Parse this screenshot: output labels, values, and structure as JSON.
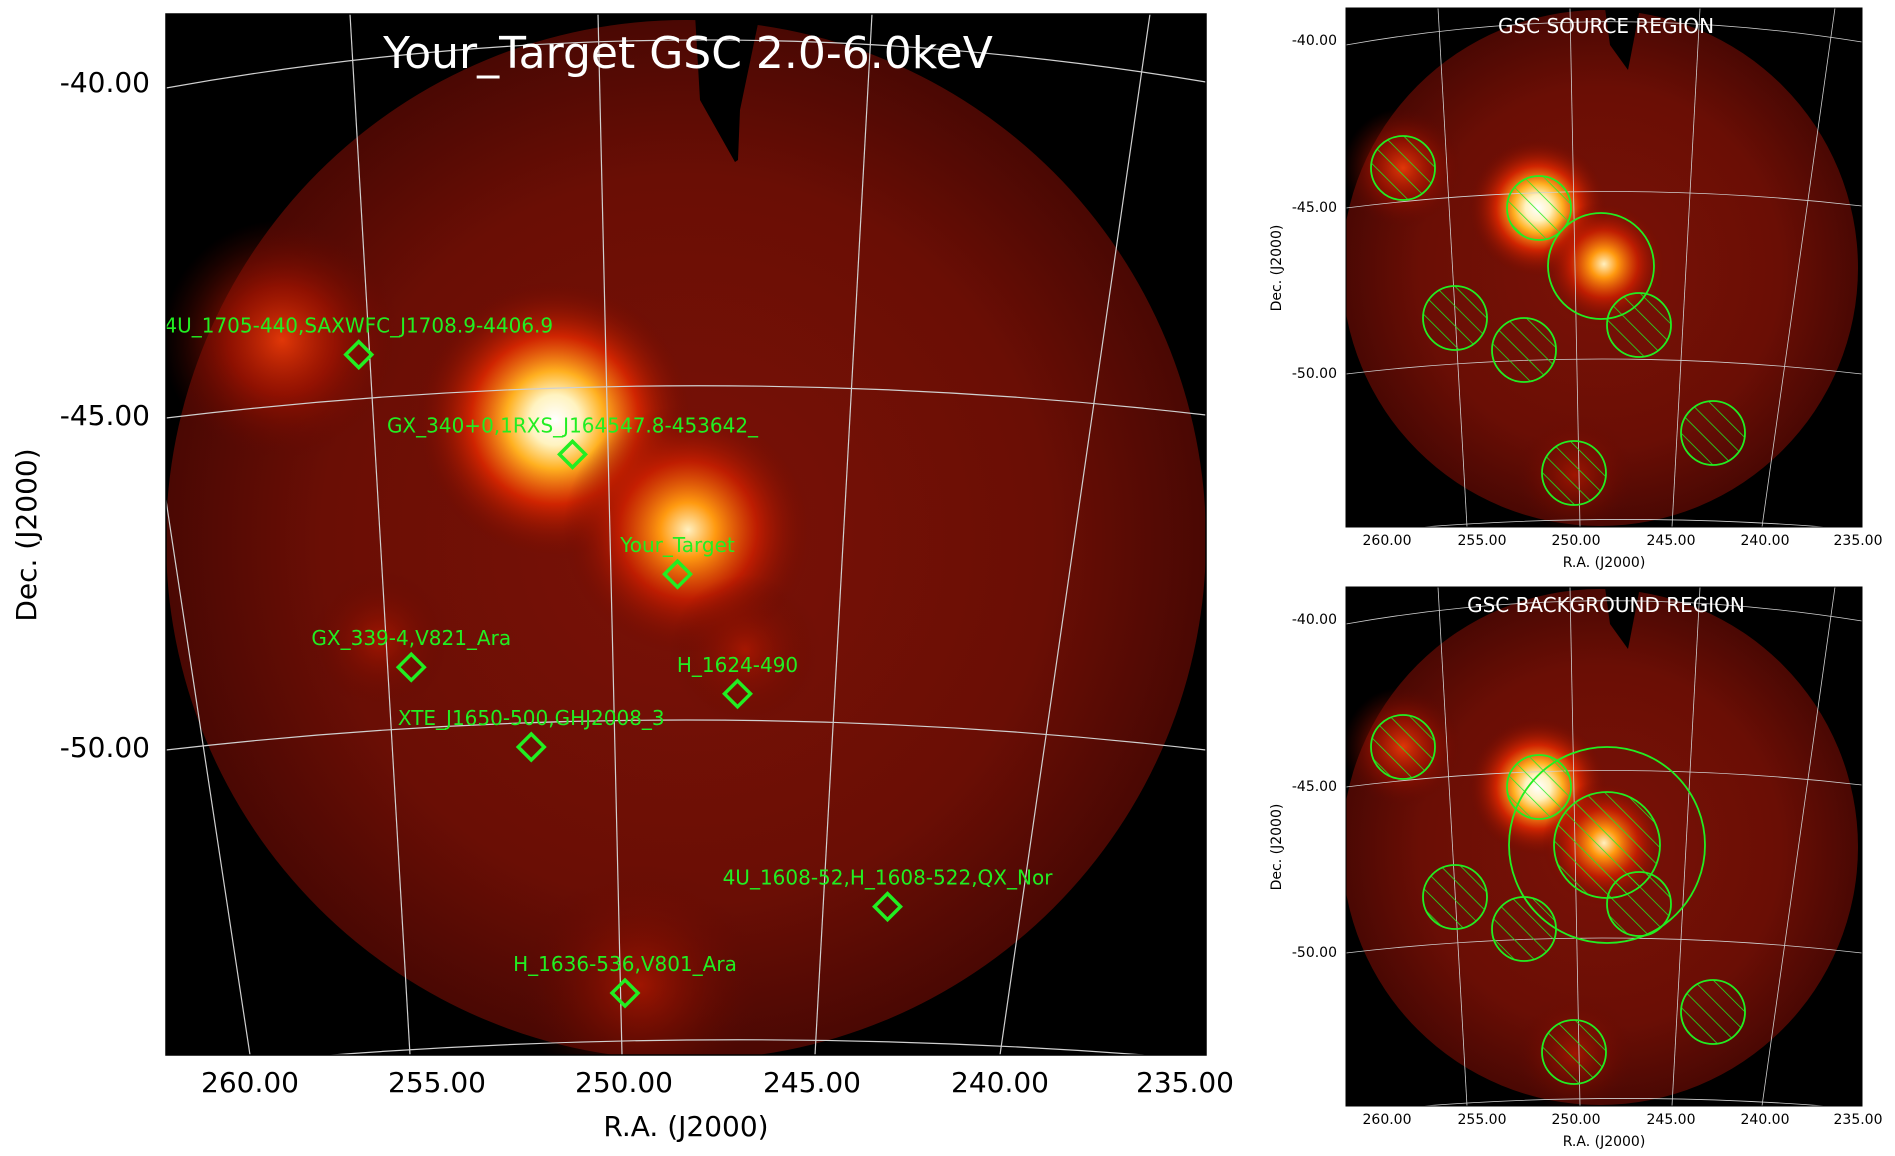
{
  "main_panel": {
    "title": "Your_Target GSC 2.0-6.0keV",
    "xlabel": "R.A. (J2000)",
    "ylabel": "Dec. (J2000)",
    "xticks": [
      "260.00",
      "255.00",
      "250.00",
      "245.00",
      "240.00",
      "235.00"
    ],
    "yticks": [
      "-40.00",
      "-45.00",
      "-50.00"
    ],
    "sources": [
      {
        "label": "4U_1705-440,SAXWFC_J1708.9-4406.9",
        "ra": 257.1,
        "dec": -44.1
      },
      {
        "label": "GX_340+0,1RXS_J164547.8-453642_",
        "ra": 251.4,
        "dec": -45.6
      },
      {
        "label": "Your_Target",
        "ra": 248.6,
        "dec": -47.4
      },
      {
        "label": "GX_339-4,V821_Ara",
        "ra": 255.7,
        "dec": -48.8
      },
      {
        "label": "H_1624-490",
        "ra": 247.0,
        "dec": -49.2
      },
      {
        "label": "XTE_J1650-500,GHJ2008_3",
        "ra": 252.5,
        "dec": -50.0
      },
      {
        "label": "4U_1608-52,H_1608-522,QX_Nor",
        "ra": 243.0,
        "dec": -52.4
      },
      {
        "label": "H_1636-536,V801_Ara",
        "ra": 250.0,
        "dec": -53.7
      }
    ]
  },
  "source_panel": {
    "title": "GSC SOURCE REGION",
    "xlabel": "R.A. (J2000)",
    "ylabel": "Dec. (J2000)",
    "xticks": [
      "260.00",
      "255.00",
      "250.00",
      "245.00",
      "240.00",
      "235.00"
    ],
    "yticks": [
      "-40.00",
      "-45.00",
      "-50.00"
    ]
  },
  "background_panel": {
    "title": "GSC BACKGROUND REGION",
    "xlabel": "R.A. (J2000)",
    "ylabel": "Dec. (J2000)",
    "xticks": [
      "260.00",
      "255.00",
      "250.00",
      "245.00",
      "240.00",
      "235.00"
    ],
    "yticks": [
      "-40.00",
      "-45.00",
      "-50.00"
    ]
  },
  "colors": {
    "region": "#22ee22",
    "grid": "#cccccc",
    "background": "#000000"
  }
}
